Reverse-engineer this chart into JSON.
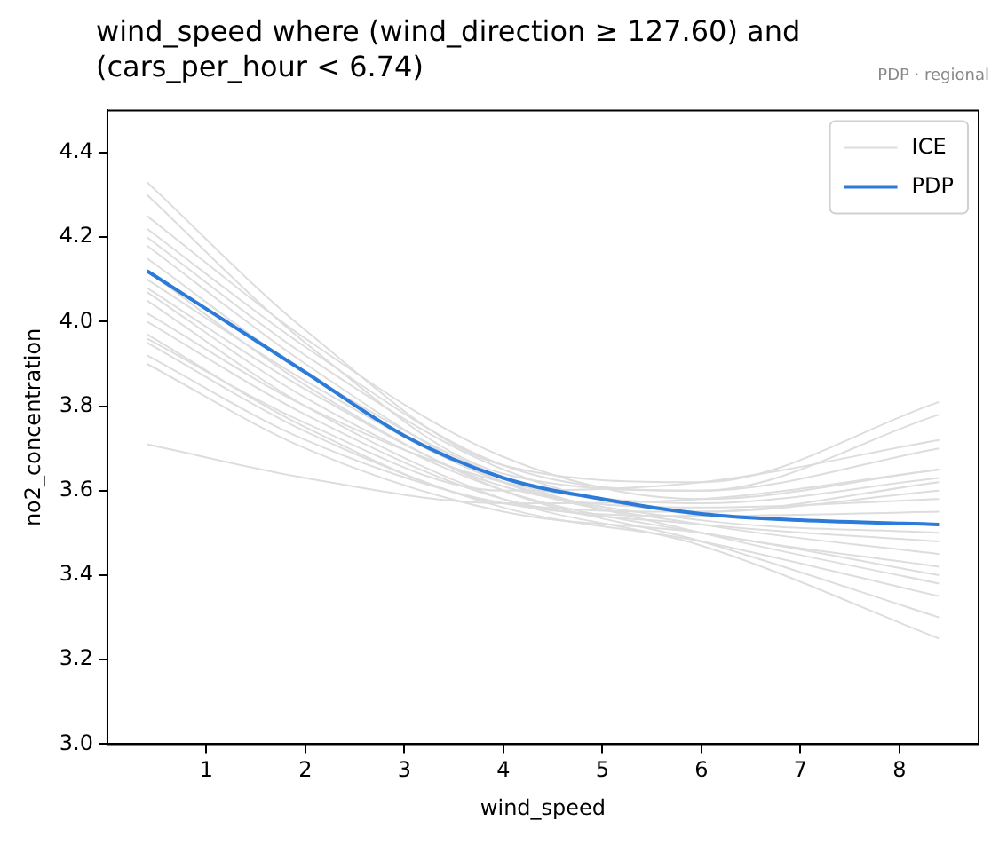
{
  "chart_data": {
    "type": "line",
    "title": "wind_speed where (wind_direction ≥ 127.60) and (cars_per_hour < 6.74)",
    "subtitle": "PDP · regional",
    "xlabel": "wind_speed",
    "ylabel": "no2_concentration",
    "xlim": [
      0,
      8.8
    ],
    "xticks": [
      1,
      2,
      3,
      4,
      5,
      6,
      7,
      8
    ],
    "ylim": [
      3.0,
      4.5
    ],
    "yticks": [
      {
        "value": 3,
        "label": "3.0"
      },
      3.2,
      3.4,
      3.6,
      3.8,
      {
        "value": 4,
        "label": "4.0"
      },
      4.2,
      4.4
    ],
    "grid": false,
    "legend": "top right",
    "marker": "none",
    "x": [
      0.4,
      2,
      4,
      6,
      8.4
    ],
    "series": [
      {
        "name": "ICE",
        "color": "#dddddd",
        "values": [
          4.33,
          3.98,
          3.66,
          3.62,
          3.81
        ]
      },
      {
        "color": "#dddddd",
        "values": [
          4.3,
          3.95,
          3.64,
          3.6,
          3.78
        ]
      },
      {
        "color": "#dddddd",
        "values": [
          4.25,
          3.96,
          3.68,
          3.58,
          3.65
        ]
      },
      {
        "color": "#dddddd",
        "values": [
          4.2,
          3.92,
          3.65,
          3.55,
          3.6
        ]
      },
      {
        "color": "#dddddd",
        "values": [
          4.18,
          3.9,
          3.62,
          3.52,
          3.45
        ]
      },
      {
        "color": "#dddddd",
        "values": [
          4.15,
          3.88,
          3.63,
          3.5,
          3.38
        ]
      },
      {
        "color": "#dddddd",
        "values": [
          4.12,
          3.85,
          3.6,
          3.48,
          3.3
        ]
      },
      {
        "color": "#dddddd",
        "values": [
          4.1,
          3.86,
          3.62,
          3.53,
          3.5
        ]
      },
      {
        "color": "#dddddd",
        "values": [
          4.07,
          3.82,
          3.6,
          3.5,
          3.42
        ]
      },
      {
        "color": "#dddddd",
        "values": [
          4.05,
          3.8,
          3.58,
          3.47,
          3.25
        ]
      },
      {
        "color": "#dddddd",
        "values": [
          4.02,
          3.8,
          3.62,
          3.57,
          3.63
        ]
      },
      {
        "color": "#dddddd",
        "values": [
          4.0,
          3.78,
          3.58,
          3.52,
          3.48
        ]
      },
      {
        "color": "#dddddd",
        "values": [
          3.97,
          3.75,
          3.57,
          3.55,
          3.62
        ]
      },
      {
        "color": "#dddddd",
        "values": [
          3.95,
          3.74,
          3.56,
          3.48,
          3.35
        ]
      },
      {
        "color": "#dddddd",
        "values": [
          3.92,
          3.72,
          3.57,
          3.54,
          3.55
        ]
      },
      {
        "color": "#dddddd",
        "values": [
          3.9,
          3.7,
          3.55,
          3.5,
          3.4
        ]
      },
      {
        "color": "#dddddd",
        "values": [
          3.71,
          3.63,
          3.57,
          3.58,
          3.65
        ]
      },
      {
        "color": "#dddddd",
        "values": [
          4.22,
          3.94,
          3.66,
          3.6,
          3.7
        ]
      },
      {
        "color": "#dddddd",
        "values": [
          4.08,
          3.84,
          3.61,
          3.56,
          3.58
        ]
      },
      {
        "color": "#dddddd",
        "values": [
          3.96,
          3.76,
          3.6,
          3.62,
          3.72
        ]
      },
      {
        "name": "PDP",
        "color": "#2c7bd9",
        "x": [
          0.4,
          1,
          2,
          3,
          4,
          5,
          6,
          7,
          8.4
        ],
        "values": [
          4.12,
          4.03,
          3.88,
          3.73,
          3.63,
          3.58,
          3.545,
          3.53,
          3.52
        ]
      }
    ]
  }
}
